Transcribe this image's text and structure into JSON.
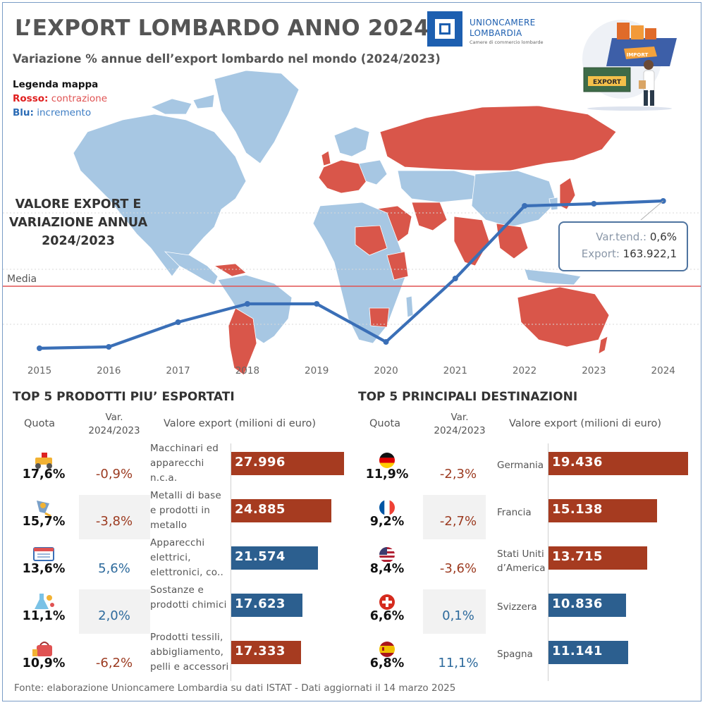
{
  "header": {
    "title": "L’EXPORT LOMBARDO ANNO 2024",
    "subtitle": "Variazione % annue dell’export lombardo nel mondo (2024/2023)",
    "logo_line1": "UNIONCAMERE",
    "logo_line2": "LOMBARDIA",
    "logo_tagline": "Camere di commercio lombarde",
    "hero_import": "IMPORT",
    "hero_export": "EXPORT"
  },
  "legend": {
    "title": "Legenda mappa",
    "red_key": "Rosso:",
    "red_value": "contrazione",
    "blue_key": "Blu:",
    "blue_value": "incremento",
    "colors": {
      "contraction": "#d9564a",
      "increase": "#a7c7e3"
    }
  },
  "chart_data": {
    "type": "line",
    "title": "VALORE EXPORT E VARIAZIONE ANNUA 2024/2023",
    "x": [
      "2015",
      "2016",
      "2017",
      "2018",
      "2019",
      "2020",
      "2021",
      "2022",
      "2023",
      "2024"
    ],
    "reference_line_label": "Media",
    "tooltip": {
      "var_label": "Var.tend.:",
      "var_value": "0,6%",
      "export_label": "Export:",
      "export_value": "163.922,1",
      "year": "2024"
    },
    "series_color": "#3a6fb7",
    "reference_color": "#e05252"
  },
  "products": {
    "title": "TOP 5 PRODOTTI PIU’ ESPORTATI",
    "col_quota": "Quota",
    "col_var": "Var. 2024/2023",
    "col_value": "Valore export (milioni di euro)",
    "rows": [
      {
        "quota": "17,6%",
        "var": "-0,9%",
        "label": "Macchinari ed apparecchi n.c.a.",
        "value": "27.996",
        "num": 27996,
        "dir": "neg",
        "icon": "machinery-icon"
      },
      {
        "quota": "15,7%",
        "var": "-3,8%",
        "label": "Metalli di base e prodotti in metallo",
        "value": "24.885",
        "num": 24885,
        "dir": "neg",
        "icon": "metal-ladle-icon"
      },
      {
        "quota": "13,6%",
        "var": "5,6%",
        "label": "Apparecchi elettrici, elettronici, co..",
        "value": "21.574",
        "num": 21574,
        "dir": "pos",
        "icon": "circuit-board-icon"
      },
      {
        "quota": "11,1%",
        "var": "2,0%",
        "label": "Sostanze e prodotti chimici",
        "value": "17.623",
        "num": 17623,
        "dir": "pos",
        "icon": "chemistry-flask-icon"
      },
      {
        "quota": "10,9%",
        "var": "-6,2%",
        "label": "Prodotti tessili, abbigliamento, pelli e accessori",
        "value": "17.333",
        "num": 17333,
        "dir": "neg",
        "icon": "handbag-icon"
      }
    ]
  },
  "destinations": {
    "title": "TOP 5 PRINCIPALI DESTINAZIONI",
    "col_quota": "Quota",
    "col_var": "Var. 2024/2023",
    "col_value": "Valore export (milioni di euro)",
    "rows": [
      {
        "quota": "11,9%",
        "var": "-2,3%",
        "label": "Germania",
        "value": "19.436",
        "num": 19436,
        "dir": "neg",
        "flag": "germany-flag-icon"
      },
      {
        "quota": "9,2%",
        "var": "-2,7%",
        "label": "Francia",
        "value": "15.138",
        "num": 15138,
        "dir": "neg",
        "flag": "france-flag-icon"
      },
      {
        "quota": "8,4%",
        "var": "-3,6%",
        "label": "Stati Uniti d’America",
        "value": "13.715",
        "num": 13715,
        "dir": "neg",
        "flag": "usa-flag-icon"
      },
      {
        "quota": "6,6%",
        "var": "0,1%",
        "label": "Svizzera",
        "value": "10.836",
        "num": 10836,
        "dir": "pos",
        "flag": "switzerland-flag-icon"
      },
      {
        "quota": "6,8%",
        "var": "11,1%",
        "label": "Spagna",
        "value": "11.141",
        "num": 11141,
        "dir": "pos",
        "flag": "spain-flag-icon"
      }
    ]
  },
  "footer": {
    "source": "Fonte: elaborazione Unioncamere Lombardia su dati ISTAT - Dati aggiornati il 14 marzo 2025"
  }
}
